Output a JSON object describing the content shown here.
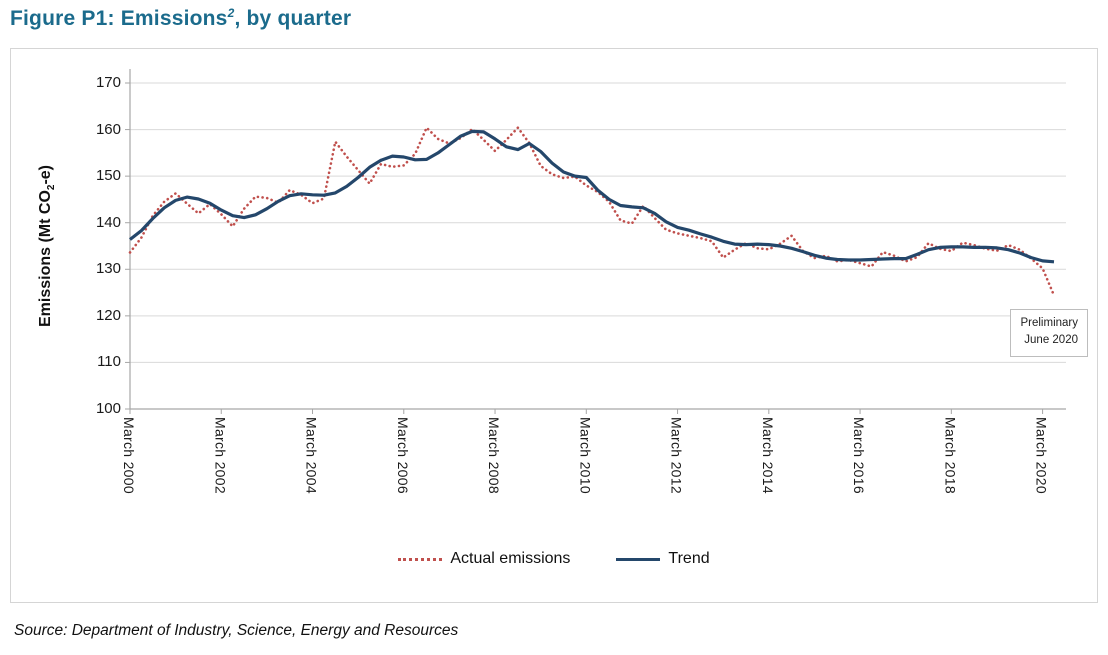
{
  "title": {
    "prefix": "Figure P1: Emissions",
    "superscript": "2",
    "suffix": ", by quarter"
  },
  "source_note": "Source: Department of Industry, Science, Energy and Resources",
  "annotation": {
    "line1": "Preliminary",
    "line2": "June 2020"
  },
  "y_axis_title": {
    "prefix": "Emissions (Mt CO",
    "subscript": "2",
    "suffix": "-e)"
  },
  "legend": [
    {
      "label": "Actual emissions",
      "style": "dotted",
      "color": "#C0504D"
    },
    {
      "label": "Trend",
      "style": "solid",
      "color": "#24476B"
    }
  ],
  "colors": {
    "title_text": "#1B6B8C",
    "actual_series": "#C0504D",
    "trend_series": "#24476B",
    "gridline": "#d9d9d9",
    "axis_line": "#a6a6a6",
    "chart_border": "#d5d5d5"
  },
  "chart_data": {
    "type": "line",
    "title": "Figure P1: Emissions, by quarter",
    "ylabel": "Emissions (Mt CO2-e)",
    "ylim": [
      100,
      170
    ],
    "y_ticks": [
      170,
      160,
      150,
      140,
      130,
      120,
      110,
      100
    ],
    "x_start": "March 2000",
    "x_end": "June 2020",
    "x_frequency": "quarterly",
    "x_tick_labels": [
      "March 2000",
      "March 2002",
      "March 2004",
      "March 2006",
      "March 2008",
      "March 2010",
      "March 2012",
      "March 2014",
      "March 2016",
      "March 2018",
      "March 2020"
    ],
    "grid": "horizontal",
    "legend_position": "bottom",
    "series": [
      {
        "name": "Actual emissions",
        "style": "dotted",
        "color": "#C0504D",
        "values": [
          133.6,
          136.8,
          141.5,
          144.5,
          146.3,
          144.1,
          142.0,
          144.0,
          141.8,
          139.2,
          143.0,
          145.6,
          145.3,
          144.3,
          147.0,
          146.0,
          144.2,
          145.2,
          157.4,
          154.2,
          151.3,
          148.4,
          152.6,
          152.0,
          152.3,
          154.8,
          160.4,
          158.0,
          157.0,
          158.2,
          160.1,
          157.8,
          155.4,
          157.8,
          160.4,
          157.1,
          152.2,
          150.4,
          149.6,
          149.9,
          148.0,
          146.6,
          144.5,
          140.5,
          139.8,
          143.6,
          141.0,
          138.5,
          137.7,
          137.2,
          136.7,
          136.0,
          132.5,
          134.2,
          135.6,
          134.5,
          134.3,
          135.5,
          137.2,
          133.9,
          132.4,
          132.9,
          131.7,
          132.0,
          131.3,
          130.6,
          133.7,
          132.9,
          131.7,
          132.6,
          135.6,
          134.4,
          133.9,
          135.7,
          135.2,
          134.4,
          134.0,
          135.2,
          134.2,
          132.3,
          130.2,
          124.4
        ]
      },
      {
        "name": "Trend",
        "style": "solid",
        "color": "#24476B",
        "values": [
          136.4,
          138.3,
          140.9,
          143.2,
          144.8,
          145.5,
          145.1,
          144.2,
          142.7,
          141.5,
          141.1,
          141.7,
          143.0,
          144.6,
          145.8,
          146.2,
          146.0,
          145.9,
          146.4,
          147.8,
          149.7,
          151.9,
          153.4,
          154.3,
          154.1,
          153.5,
          153.6,
          155.0,
          156.8,
          158.6,
          159.6,
          159.5,
          158.0,
          156.3,
          155.7,
          157.0,
          155.3,
          152.8,
          150.9,
          150.0,
          149.7,
          147.0,
          145.0,
          143.7,
          143.4,
          143.2,
          142.0,
          140.2,
          139.0,
          138.4,
          137.6,
          136.9,
          136.0,
          135.4,
          135.3,
          135.4,
          135.3,
          135.0,
          134.5,
          133.8,
          133.0,
          132.4,
          132.1,
          132.0,
          132.0,
          132.1,
          132.2,
          132.3,
          132.3,
          133.2,
          134.2,
          134.7,
          134.8,
          134.8,
          134.7,
          134.7,
          134.6,
          134.2,
          133.5,
          132.5,
          131.8,
          131.6
        ]
      }
    ]
  }
}
